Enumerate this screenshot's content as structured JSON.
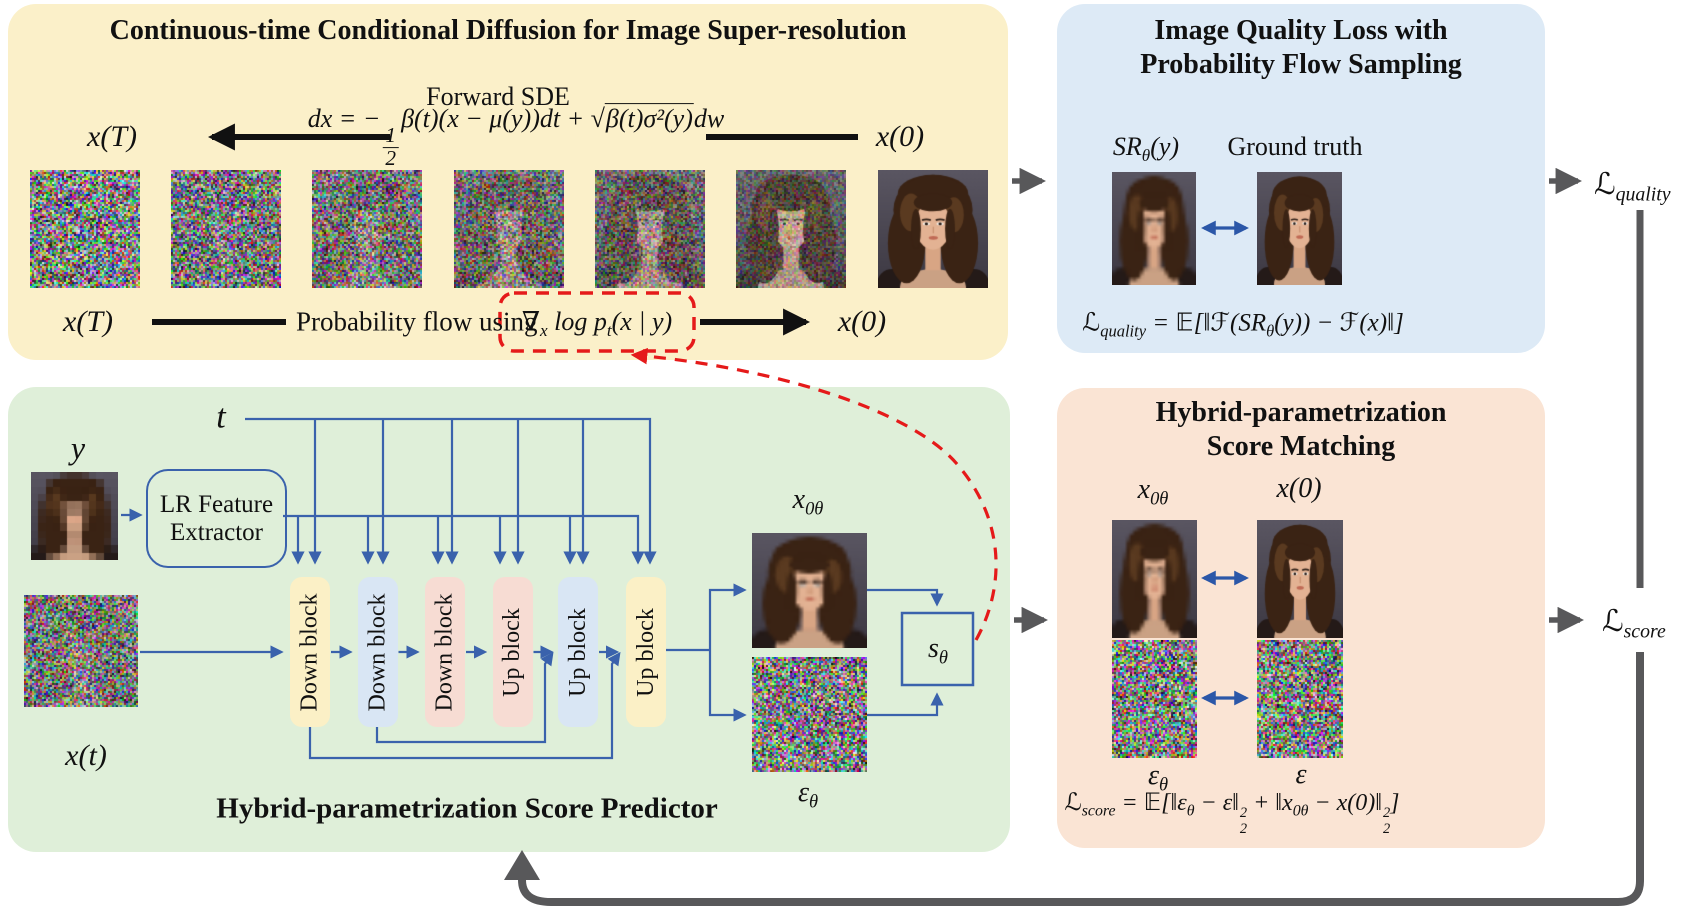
{
  "figure": {
    "panel_diffusion": {
      "title": "Continuous-time Conditional Diffusion for Image Super-resolution",
      "forward_sde_label": "Forward SDE",
      "x_T_label": "x(T)",
      "x_0_label": "x(0)",
      "sde_equation": "dx = −\\frac{1}{2}β(t)(x − μ(y))dt + \\sqrt{β(t)σ²(y)}dw",
      "prob_flow_text": "Probability flow using",
      "score_term": "∇_{x} log p_{t}(x | y)",
      "num_diffusion_steps": 7
    },
    "panel_quality": {
      "title_line1": "Image Quality Loss with",
      "title_line2": "Probability Flow Sampling",
      "sr_label": "SR_{θ}(y)",
      "gt_label": "Ground truth",
      "equation": "ℒ_{quality} = 𝔼[‖ℱ(SR_{θ}(y)) − ℱ(x)‖]"
    },
    "panel_predictor": {
      "title": "Hybrid-parametrization Score Predictor",
      "t_label": "t",
      "y_label": "y",
      "xt_label": "x(t)",
      "lr_extractor_line1": "LR Feature",
      "lr_extractor_line2": "Extractor",
      "blocks": [
        {
          "label": "Down block",
          "color": "#FBF0C6"
        },
        {
          "label": "Down block",
          "color": "#D9E6F4"
        },
        {
          "label": "Down block",
          "color": "#F7DCD3"
        },
        {
          "label": "Up block",
          "color": "#F7DCD3"
        },
        {
          "label": "Up block",
          "color": "#D9E6F4"
        },
        {
          "label": "Up block",
          "color": "#FBF0C6"
        }
      ],
      "x0_pred_label": "x_{0θ}",
      "eps_pred_label": "ε_{θ}",
      "score_net_label": "s_{θ}"
    },
    "panel_matching": {
      "title_line1": "Hybrid-parametrization",
      "title_line2": "Score Matching",
      "x0_pred_label": "x_{0θ}",
      "x0_gt_label": "x(0)",
      "eps_pred_label": "ε_{θ}",
      "eps_gt_label": "ε",
      "equation": "ℒ_{score} = 𝔼[‖ε_{θ} − ε‖\\stack{2}{2} + ‖x_{0θ} − x(0)‖\\stack{2}{2}]"
    },
    "outputs": {
      "quality_label": "ℒ_{quality}",
      "score_label": "ℒ_{score}"
    },
    "colors": {
      "panel_diffusion_bg": "#FBF0C9",
      "panel_quality_bg": "#DDEAF6",
      "panel_predictor_bg": "#DFEFD9",
      "panel_matching_bg": "#FAE4D4",
      "wire_blue": "#3A62AC",
      "arrow_gray": "#58585A",
      "arrow_black": "#111111",
      "dashed_red": "#E51A1A",
      "compare_arrow_blue": "#2B57A8"
    }
  }
}
